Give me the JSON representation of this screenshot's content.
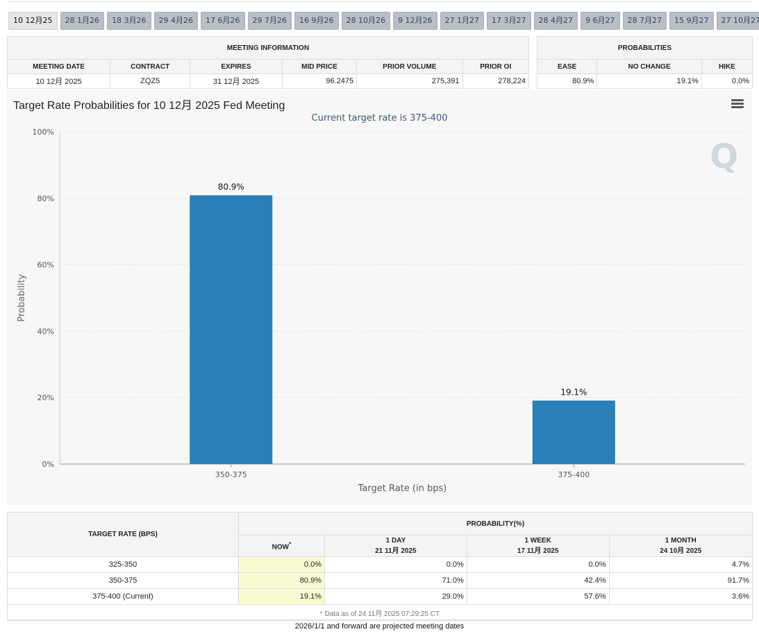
{
  "tabs": [
    "10 12月25",
    "28 1月26",
    "18 3月26",
    "29 4月26",
    "17 6月26",
    "29 7月26",
    "16 9月26",
    "28 10月26",
    "9 12月26",
    "27 1月27",
    "17 3月27",
    "28 4月27",
    "9 6月27",
    "28 7月27",
    "15 9月27",
    "27 10月27"
  ],
  "meeting_info": {
    "title": "MEETING INFORMATION",
    "headers": [
      "MEETING DATE",
      "CONTRACT",
      "EXPIRES",
      "MID PRICE",
      "PRIOR VOLUME",
      "PRIOR OI"
    ],
    "row": [
      "10 12月 2025",
      "ZQZ5",
      "31 12月 2025",
      "96.2475",
      "275,391",
      "278,224"
    ]
  },
  "probabilities": {
    "title": "PROBABILITIES",
    "headers": [
      "EASE",
      "NO CHANGE",
      "HIKE"
    ],
    "row": [
      "80.9%",
      "19.1%",
      "0.0%"
    ]
  },
  "chart": {
    "title": "Target Rate Probabilities for 10 12月 2025 Fed Meeting",
    "subtitle": "Current target rate is 375-400"
  },
  "chart_data": {
    "type": "bar",
    "title": "Target Rate Probabilities for 10 12月 2025 Fed Meeting",
    "subtitle": "Current target rate is 375-400",
    "categories": [
      "350-375",
      "375-400"
    ],
    "values": [
      80.9,
      19.1
    ],
    "data_labels": [
      "80.9%",
      "19.1%"
    ],
    "xlabel": "Target Rate (in bps)",
    "ylabel": "Probability",
    "ylim": [
      0,
      100
    ],
    "yticks": [
      "0%",
      "20%",
      "40%",
      "60%",
      "80%",
      "100%"
    ],
    "bar_color": "#2980b9",
    "grid": true
  },
  "bottom_table": {
    "col_rate": "TARGET RATE (BPS)",
    "col_prob": "PROBABILITY(%)",
    "subheaders": [
      {
        "line1": "NOW",
        "sup": "*",
        "line2": ""
      },
      {
        "line1": "1 DAY",
        "line2": "21 11月 2025"
      },
      {
        "line1": "1 WEEK",
        "line2": "17 11月 2025"
      },
      {
        "line1": "1 MONTH",
        "line2": "24 10月 2025"
      }
    ],
    "rows": [
      {
        "rate": "325-350",
        "now": "0.0%",
        "day": "0.0%",
        "week": "0.0%",
        "month": "4.7%"
      },
      {
        "rate": "350-375",
        "now": "80.9%",
        "day": "71.0%",
        "week": "42.4%",
        "month": "91.7%"
      },
      {
        "rate": "375-400 (Current)",
        "now": "19.1%",
        "day": "29.0%",
        "week": "57.6%",
        "month": "3.6%"
      }
    ],
    "note": "* Data as of 24 11月 2025 07:29:25 CT"
  },
  "footer": "2026/1/1 and forward are projected meeting dates"
}
